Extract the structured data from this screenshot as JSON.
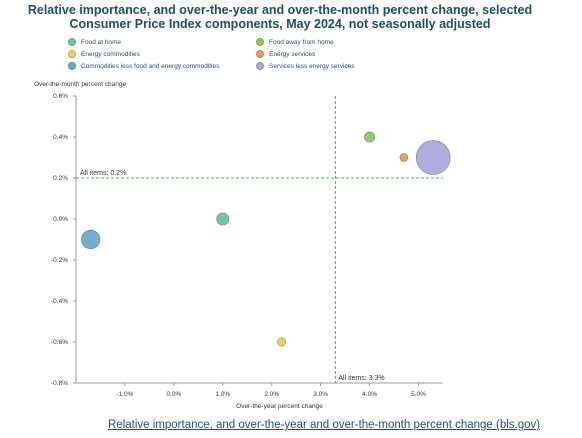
{
  "page": {
    "title_line1": "Relative importance, and over-the-year and over-the-month percent change, selected",
    "title_line2": "Consumer Price Index components, May 2024, not seasonally adjusted",
    "footer_link": "Relative importance, and over-the-year and over-the-month percent change (bls.gov)"
  },
  "legend": [
    {
      "label": "Food at home",
      "color": "#6cc4a4"
    },
    {
      "label": "Food away from home",
      "color": "#93c66a"
    },
    {
      "label": "Energy commodities",
      "color": "#f2cc5a"
    },
    {
      "label": "Energy services",
      "color": "#ee9a5a"
    },
    {
      "label": "Commodities less food and energy commodities",
      "color": "#6aa9cf"
    },
    {
      "label": "Services less energy services",
      "color": "#a9a9dd"
    }
  ],
  "chart_data": {
    "type": "scatter",
    "title": "Relative importance, and over-the-year and over-the-month percent change, selected Consumer Price Index components, May 2024, not seasonally adjusted",
    "xlabel": "Over-the-year percent change",
    "ylabel": "Over-the-month percent change",
    "xlim": [
      -2.0,
      5.5
    ],
    "ylim": [
      -0.8,
      0.6
    ],
    "x_ticks": [
      -1.0,
      0.0,
      1.0,
      2.0,
      3.0,
      4.0,
      5.0
    ],
    "x_tick_labels": [
      "-1.0%",
      "0.0%",
      "1.0%",
      "2.0%",
      "3.0%",
      "4.0%",
      "5.0%"
    ],
    "y_ticks": [
      -0.8,
      -0.6,
      -0.4,
      -0.2,
      0.0,
      0.2,
      0.4,
      0.6
    ],
    "y_tick_labels": [
      "-0.8%",
      "-0.6%",
      "-0.4%",
      "-0.2%",
      "0.0%",
      "0.2%",
      "0.4%",
      "0.6%"
    ],
    "series": [
      {
        "name": "Food at home",
        "x": 1.0,
        "y": 0.0,
        "relative_importance": 8,
        "color": "#6cc4a4"
      },
      {
        "name": "Food away from home",
        "x": 4.0,
        "y": 0.4,
        "relative_importance": 5.5,
        "color": "#93c66a"
      },
      {
        "name": "Energy commodities",
        "x": 2.2,
        "y": -0.6,
        "relative_importance": 3.5,
        "color": "#f2cc5a"
      },
      {
        "name": "Energy services",
        "x": 4.7,
        "y": 0.3,
        "relative_importance": 3.3,
        "color": "#ee9a5a"
      },
      {
        "name": "Commodities less food and energy commodities",
        "x": -1.7,
        "y": -0.1,
        "relative_importance": 18.5,
        "color": "#6aa9cf"
      },
      {
        "name": "Services less energy services",
        "x": 5.3,
        "y": 0.3,
        "relative_importance": 61.5,
        "color": "#a9a9dd"
      }
    ],
    "reference_lines": {
      "horizontal": {
        "value": 0.2,
        "label": "All items: 0.2%"
      },
      "vertical": {
        "value": 3.3,
        "label": "All items: 3.3%"
      },
      "color": "#4caf50"
    },
    "grid": false
  }
}
